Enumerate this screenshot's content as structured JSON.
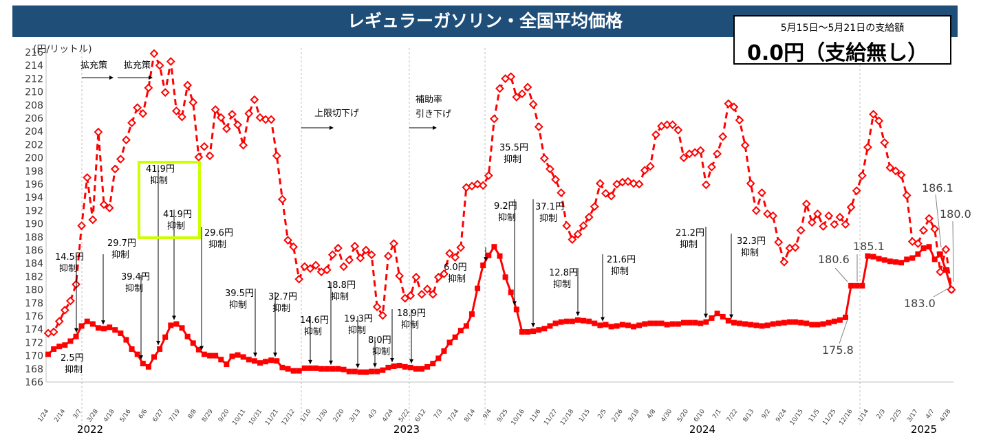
{
  "title": "レギュラーガソリン・全国平均価格",
  "subsidy": {
    "period": "5月15日～5月21日の支給額",
    "amount": "0.0円（支給無し）"
  },
  "colors": {
    "series": "#ff0000",
    "title_bg": "#1f4e79",
    "highlight": "#ccff00"
  },
  "chart_data": {
    "type": "line",
    "ylabel": "(円/リットル)",
    "ylim": [
      166,
      216
    ],
    "yticks": [
      166,
      168,
      170,
      172,
      174,
      176,
      178,
      180,
      182,
      184,
      186,
      188,
      190,
      192,
      194,
      196,
      198,
      200,
      202,
      204,
      206,
      208,
      210,
      212,
      214,
      216
    ],
    "xticks": [
      "1/24",
      "2/14",
      "3/7",
      "3/28",
      "4/18",
      "5/16",
      "6/6",
      "6/27",
      "7/19",
      "8/8",
      "8/29",
      "9/20",
      "10/11",
      "10/31",
      "11/21",
      "12/12",
      "1/10",
      "1/30",
      "2/20",
      "3/13",
      "4/3",
      "4/24",
      "5/22",
      "6/12",
      "7/3",
      "7/24",
      "8/14",
      "9/4",
      "9/25",
      "10/16",
      "11/6",
      "11/27",
      "12/18",
      "1/15",
      "2/5",
      "2/26",
      "3/18",
      "4/8",
      "4/30",
      "5/20",
      "6/10",
      "7/1",
      "7/22",
      "8/13",
      "9/2",
      "9/24",
      "10/15",
      "11/5",
      "11/25",
      "12/16",
      "1/14",
      "2/3",
      "2/25",
      "3/17",
      "4/7",
      "4/28"
    ],
    "years": [
      "2022",
      "2023",
      "2024",
      "2025"
    ],
    "grid": false,
    "series": [
      {
        "style": "solid-square",
        "values": [
          170.2,
          171.0,
          171.4,
          171.6,
          172.2,
          172.9,
          174.5,
          175.2,
          174.8,
          174.2,
          174.1,
          174.3,
          173.9,
          173.4,
          172.4,
          171.0,
          170.2,
          168.8,
          168.3,
          169.8,
          171.0,
          172.8,
          174.6,
          174.8,
          174.2,
          172.9,
          171.9,
          170.9,
          170.2,
          170.0,
          170.0,
          169.4,
          168.7,
          169.9,
          170.1,
          169.8,
          169.4,
          169.2,
          168.9,
          169.1,
          169.3,
          169.2,
          168.2,
          168.0,
          167.7,
          167.7,
          168.1,
          168.1,
          168.1,
          168.0,
          168.0,
          168.0,
          168.0,
          167.9,
          167.6,
          167.6,
          167.5,
          167.5,
          167.6,
          167.6,
          167.8,
          168.2,
          168.4,
          168.5,
          168.3,
          168.2,
          168.0,
          168.0,
          168.3,
          168.8,
          169.6,
          170.7,
          172.0,
          172.8,
          173.8,
          174.5,
          176.3,
          180.2,
          183.7,
          185.2,
          186.5,
          185.1,
          181.9,
          179.6,
          177.0,
          173.6,
          173.6,
          173.7,
          173.9,
          174.1,
          174.5,
          174.9,
          175.1,
          175.2,
          175.2,
          175.4,
          175.3,
          175.2,
          174.9,
          174.6,
          174.7,
          174.4,
          174.5,
          174.7,
          174.6,
          174.4,
          174.6,
          174.8,
          174.9,
          174.9,
          174.9,
          174.7,
          174.8,
          174.8,
          175.0,
          175.0,
          175.0,
          174.9,
          175.1,
          175.7,
          176.4,
          175.9,
          175.3,
          175.0,
          174.9,
          174.8,
          174.7,
          174.6,
          174.5,
          174.6,
          174.8,
          174.9,
          175.0,
          175.1,
          175.1,
          175.0,
          174.9,
          174.7,
          174.7,
          174.8,
          175.0,
          175.2,
          175.4,
          175.8,
          180.6,
          180.6,
          180.6,
          185.1,
          185.0,
          184.7,
          184.5,
          184.3,
          184.2,
          184.1,
          184.6,
          184.8,
          185.4,
          186.3,
          186.5,
          184.6,
          185.4,
          183.0,
          180.0
        ]
      },
      {
        "style": "dashed-diamond",
        "values": [
          173.4,
          173.6,
          175.2,
          176.9,
          178.3,
          180.8,
          189.7,
          197.0,
          190.6,
          203.9,
          192.9,
          192.4,
          198.3,
          199.8,
          202.7,
          205.3,
          207.6,
          206.7,
          210.6,
          215.8,
          214.0,
          209.9,
          214.6,
          207.1,
          206.2,
          211.0,
          208.4,
          200.1,
          201.7,
          200.3,
          207.3,
          206.1,
          204.4,
          206.6,
          205.0,
          201.9,
          206.7,
          208.8,
          206.1,
          205.8,
          205.8,
          200.3,
          193.7,
          187.5,
          186.5,
          181.6,
          183.5,
          183.2,
          183.7,
          182.7,
          183.0,
          185.3,
          186.3,
          183.5,
          184.5,
          186.6,
          184.8,
          186.0,
          185.3,
          177.4,
          176.1,
          185.1,
          187.0,
          182.1,
          178.7,
          179.1,
          181.9,
          179.3,
          180.1,
          179.3,
          181.9,
          182.4,
          185.5,
          184.9,
          186.4,
          195.5,
          195.7,
          196.0,
          195.8,
          197.3,
          205.9,
          210.5,
          212.0,
          212.3,
          209.2,
          209.7,
          210.7,
          208.1,
          204.7,
          199.9,
          198.3,
          196.7,
          194.7,
          189.7,
          187.6,
          188.4,
          189.7,
          191.0,
          192.6,
          196.1,
          194.6,
          194.2,
          196.0,
          196.3,
          196.4,
          196.1,
          196.0,
          198.1,
          198.7,
          203.5,
          204.8,
          205.0,
          205.0,
          204.2,
          200.0,
          200.6,
          200.8,
          201.1,
          195.9,
          198.6,
          200.6,
          203.2,
          208.2,
          207.7,
          205.7,
          201.9,
          196.1,
          192.0,
          194.7,
          191.5,
          191.2,
          187.2,
          184.2,
          186.3,
          186.4,
          189.0,
          193.0,
          190.2,
          191.5,
          189.6,
          191.2,
          189.9,
          191.0,
          189.9,
          192.5,
          195.0,
          197.3,
          201.6,
          206.6,
          205.6,
          202.3,
          198.5,
          198.0,
          197.4,
          194.3,
          187.3,
          187.0,
          189.0,
          190.8,
          189.2,
          182.7,
          186.1,
          180.0
        ]
      }
    ],
    "annotations": [
      {
        "label": "14.5円",
        "sub": "抑制"
      },
      {
        "label": "2.5円",
        "sub": "抑制"
      },
      {
        "label": "29.7円",
        "sub": "抑制"
      },
      {
        "label": "39.4円",
        "sub": "抑制"
      },
      {
        "label": "41.9円",
        "sub": "抑制"
      },
      {
        "label": "41.9円",
        "sub": "抑制"
      },
      {
        "label": "29.6円",
        "sub": "抑制"
      },
      {
        "label": "39.5円",
        "sub": "抑制"
      },
      {
        "label": "32.7円",
        "sub": "抑制"
      },
      {
        "label": "14.6円",
        "sub": "抑制"
      },
      {
        "label": "18.8円",
        "sub": "抑制"
      },
      {
        "label": "19.3円",
        "sub": "抑制"
      },
      {
        "label": "8.0円",
        "sub": "抑制"
      },
      {
        "label": "18.9円",
        "sub": "抑制"
      },
      {
        "label": "6.0円",
        "sub": "抑制"
      },
      {
        "label": "35.5円",
        "sub": "抑制"
      },
      {
        "label": "9.2円",
        "sub": "抑制"
      },
      {
        "label": "37.1円",
        "sub": "抑制"
      },
      {
        "label": "12.8円",
        "sub": "抑制"
      },
      {
        "label": "21.6円",
        "sub": "抑制"
      },
      {
        "label": "21.2円",
        "sub": "抑制"
      },
      {
        "label": "32.3円",
        "sub": "抑制"
      }
    ],
    "policy_labels": [
      "拡充策",
      "拡充策",
      "上限切下げ",
      "補助率",
      "引き下げ"
    ],
    "value_labels": [
      "186.1",
      "180.0",
      "185.1",
      "180.6",
      "175.8",
      "183.0"
    ]
  }
}
